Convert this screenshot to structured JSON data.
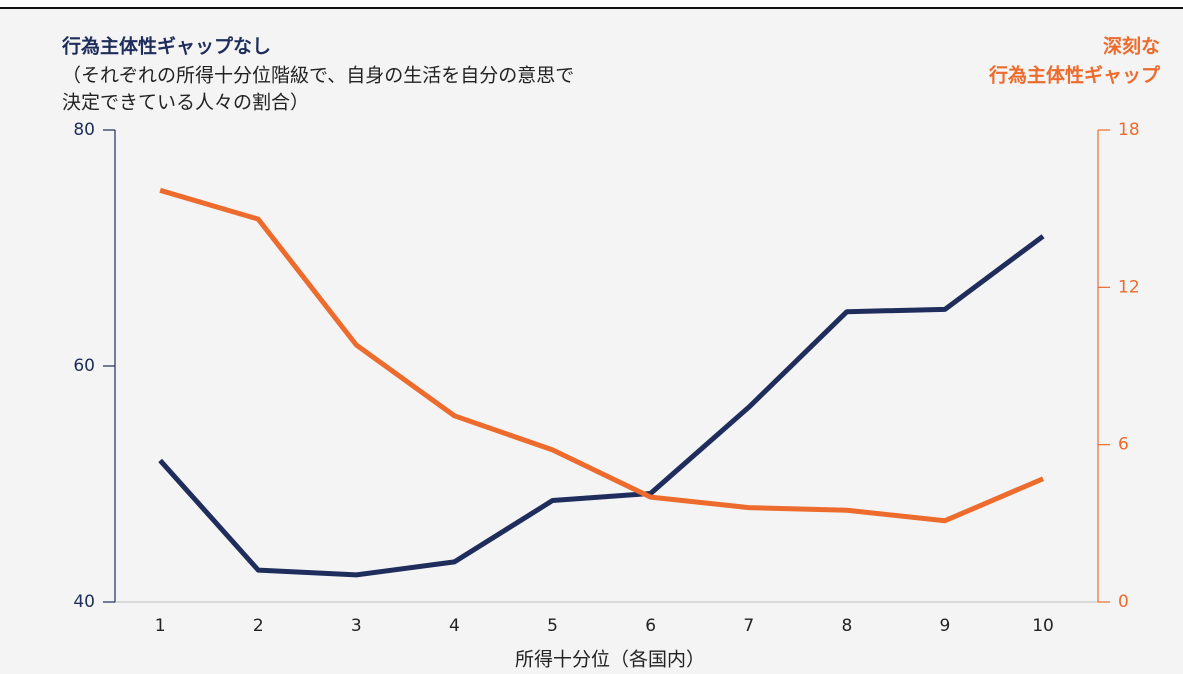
{
  "chart_data": {
    "type": "line",
    "y_label": "行為主体性ギャップなし",
    "y_sublabel": [
      "（それぞれの所得十分位階級で、自身の生活を自分の意思で",
      "決定できている人々の割合）"
    ],
    "y2_label": [
      "深刻な",
      "行為主体性ギャップ"
    ],
    "x_label": "所得十分位（各国内）",
    "x": [
      1,
      2,
      3,
      4,
      5,
      6,
      7,
      8,
      9,
      10
    ],
    "xlim": [
      0.54,
      10.56
    ],
    "xticks": [
      1,
      2,
      3,
      4,
      5,
      6,
      7,
      8,
      9,
      10
    ],
    "ylim": [
      40,
      80
    ],
    "yticks": [
      40,
      60,
      80
    ],
    "y2lim": [
      0,
      18
    ],
    "y2ticks": [
      0,
      6,
      12,
      18
    ],
    "y_color": "#1f2d5c",
    "y2_color": "#ec6b2d",
    "series": [
      {
        "color": "#1f2d5c",
        "values": [
          52.0,
          42.7,
          42.3,
          43.4,
          48.6,
          49.2,
          56.5,
          64.6,
          64.8,
          71.0
        ]
      },
      {
        "color": "#ec6b2d",
        "axis": "y2",
        "values": [
          15.7,
          14.6,
          9.8,
          7.1,
          5.8,
          4.0,
          3.6,
          3.5,
          3.1,
          4.7
        ]
      }
    ]
  }
}
